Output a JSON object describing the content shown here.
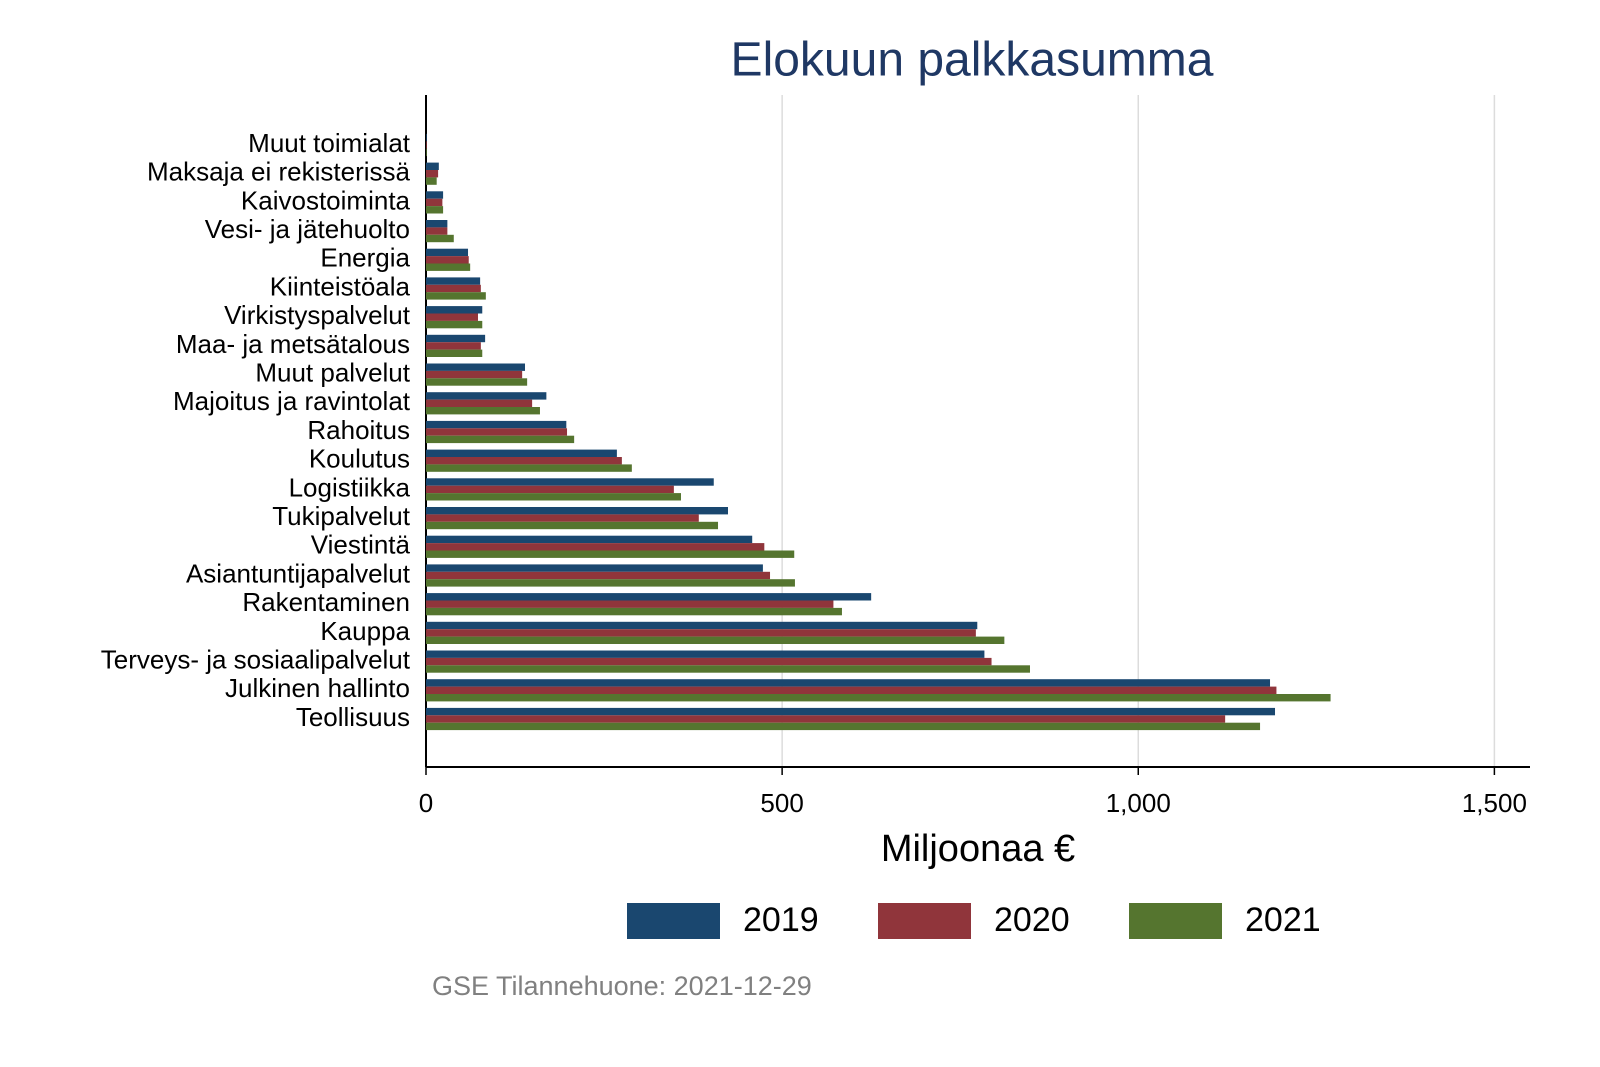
{
  "chart_data": {
    "type": "hbar",
    "title": "Elokuun palkkasumma",
    "x_label": "Miljoonaa €",
    "note": "GSE Tilannehuone: 2021-12-29",
    "categories": [
      "Muut toimialat",
      "Maksaja ei rekisterissä",
      "Kaivostoiminta",
      "Vesi- ja jätehuolto",
      "Energia",
      "Kiinteistöala",
      "Virkistyspalvelut",
      "Maa- ja metsätalous",
      "Muut palvelut",
      "Majoitus ja ravintolat",
      "Rahoitus",
      "Koulutus",
      "Logistiikka",
      "Tukipalvelut",
      "Viestintä",
      "Asiantuntijapalvelut",
      "Rakentaminen",
      "Kauppa",
      "Terveys- ja sosiaalipalvelut",
      "Julkinen hallinto",
      "Teollisuus"
    ],
    "series": [
      {
        "name": "2019",
        "color": "#1a476f",
        "values": [
          1,
          18,
          24,
          30,
          59,
          76,
          79,
          83,
          139,
          169,
          197,
          268,
          404,
          424,
          458,
          473,
          625,
          774,
          784,
          1185,
          1192
        ]
      },
      {
        "name": "2020",
        "color": "#90353b",
        "values": [
          1,
          17,
          23,
          30,
          60,
          77,
          73,
          77,
          135,
          149,
          198,
          275,
          348,
          383,
          475,
          483,
          572,
          772,
          794,
          1194,
          1122
        ]
      },
      {
        "name": "2021",
        "color": "#55752f",
        "values": [
          1,
          15,
          24,
          39,
          62,
          84,
          79,
          79,
          142,
          160,
          208,
          289,
          358,
          410,
          517,
          518,
          584,
          812,
          848,
          1270,
          1171
        ]
      }
    ],
    "xlim": [
      0,
      1550
    ],
    "xticks": [
      0,
      500,
      {
        "value": 1000,
        "label": "1,000"
      },
      {
        "value": 1500,
        "label": "1,500"
      }
    ],
    "grid": true
  }
}
